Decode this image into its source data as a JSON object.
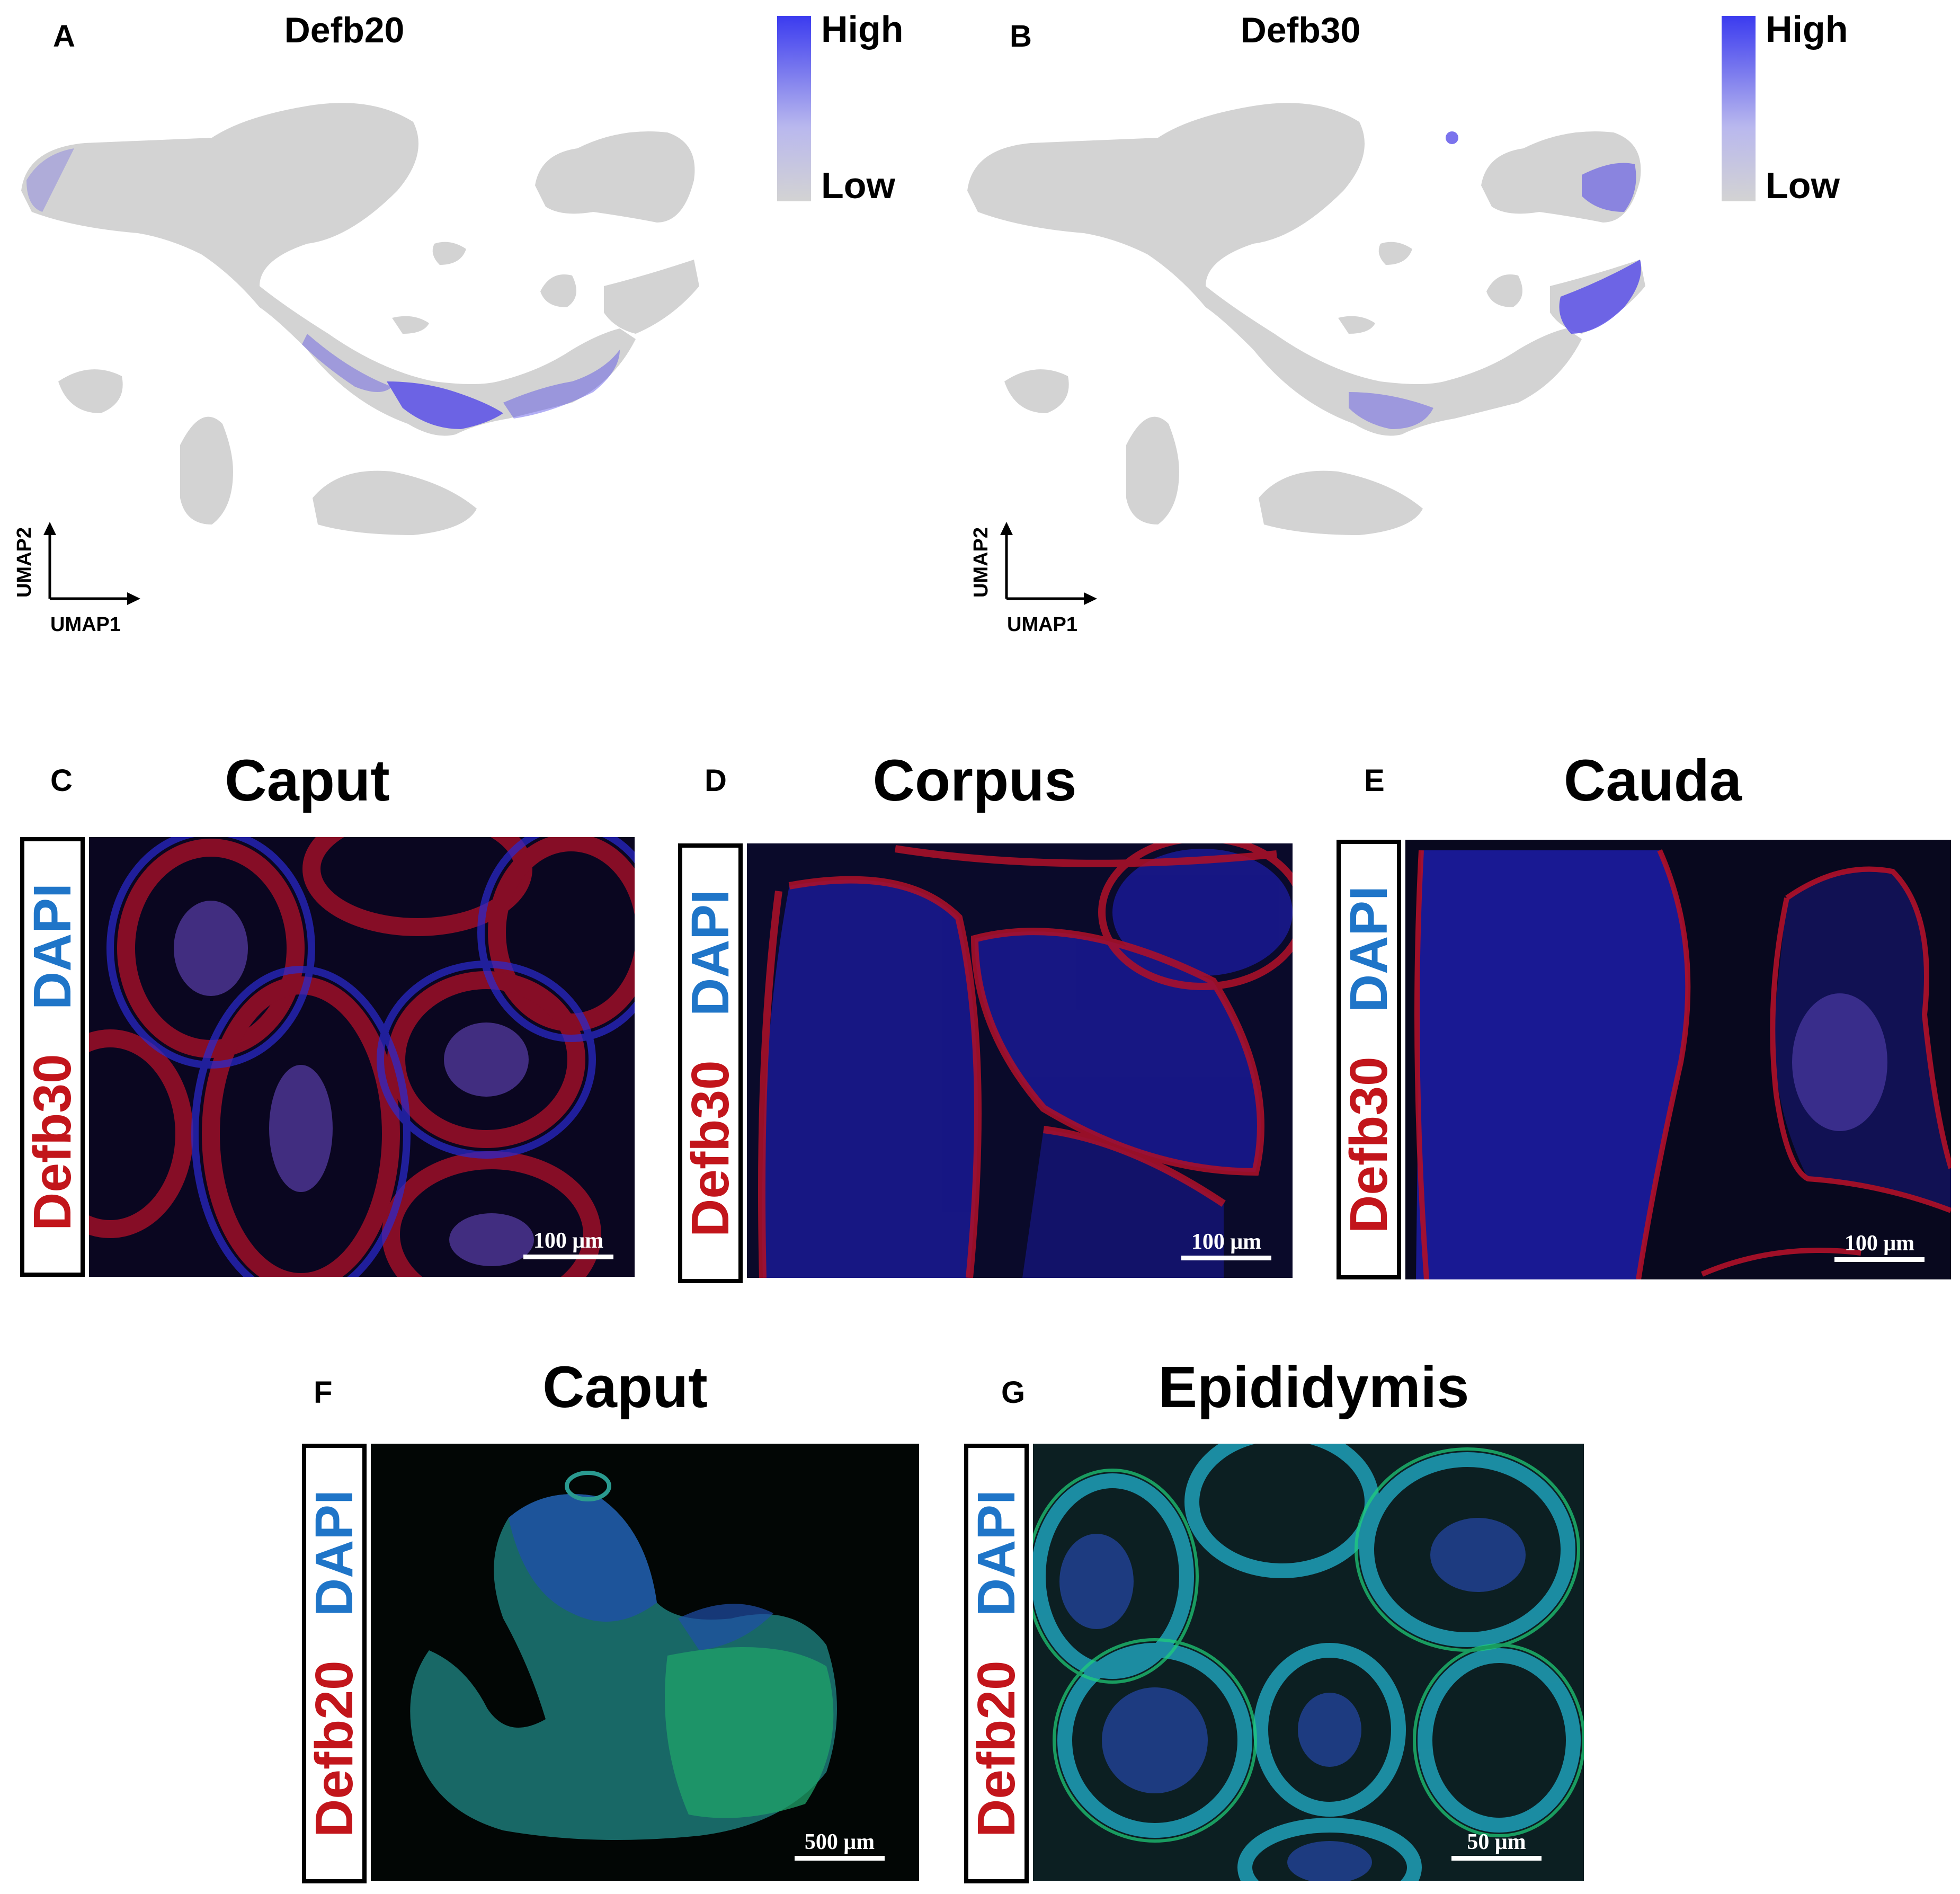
{
  "panels": {
    "A": {
      "letter": "A",
      "gene": "Defb20",
      "legend_high": "High",
      "legend_low": "Low",
      "axis_x": "UMAP1",
      "axis_y": "UMAP2",
      "color_high": "#3b3bef",
      "color_low": "#d3d3d3"
    },
    "B": {
      "letter": "B",
      "gene": "Defb30",
      "legend_high": "High",
      "legend_low": "Low",
      "axis_x": "UMAP1",
      "axis_y": "UMAP2",
      "color_high": "#3b3bef",
      "color_low": "#d3d3d3"
    },
    "C": {
      "letter": "C",
      "title": "Caput",
      "marker": "Defb30",
      "stain": "DAPI",
      "scale": "100  μm"
    },
    "D": {
      "letter": "D",
      "title": "Corpus",
      "marker": "Defb30",
      "stain": "DAPI",
      "scale": "100  μm"
    },
    "E": {
      "letter": "E",
      "title": "Cauda",
      "marker": "Defb30",
      "stain": "DAPI",
      "scale": "100  μm"
    },
    "F": {
      "letter": "F",
      "title": "Caput",
      "marker": "Defb20",
      "stain": "DAPI",
      "scale": "500  μm"
    },
    "G": {
      "letter": "G",
      "title": "Epididymis",
      "marker": "Defb20",
      "stain": "DAPI",
      "scale": "50  μm"
    }
  },
  "colors": {
    "marker_red": "#c2151b",
    "dapi_blue": "#1f75c8",
    "defb20_green": "#1fd17a"
  }
}
